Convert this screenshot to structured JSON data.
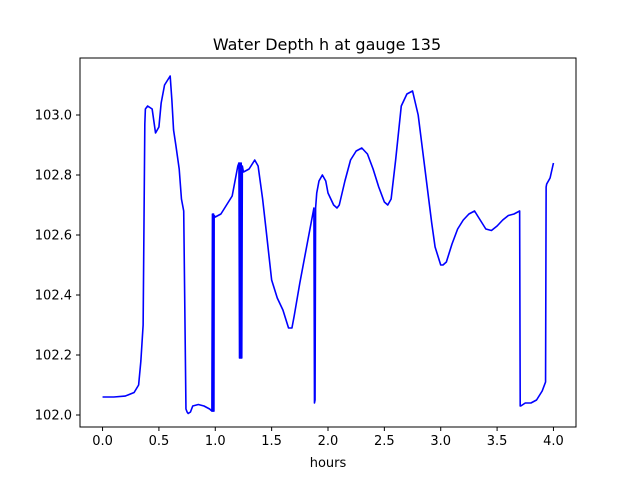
{
  "chart_data": {
    "type": "line",
    "title": "Water Depth h at gauge 135",
    "xlabel": "hours",
    "ylabel": "",
    "xlim": [
      -0.2,
      4.2
    ],
    "ylim": [
      101.96,
      103.19
    ],
    "xticks": [
      0.0,
      0.5,
      1.0,
      1.5,
      2.0,
      2.5,
      3.0,
      3.5,
      4.0
    ],
    "xtick_labels": [
      "0.0",
      "0.5",
      "1.0",
      "1.5",
      "2.0",
      "2.5",
      "3.0",
      "3.5",
      "4.0"
    ],
    "yticks": [
      102.0,
      102.2,
      102.4,
      102.6,
      102.8,
      103.0
    ],
    "ytick_labels": [
      "102.0",
      "102.2",
      "102.4",
      "102.6",
      "102.8",
      "103.0"
    ],
    "grid": false,
    "legend": "none",
    "series": [
      {
        "color": "#0000ff",
        "x": [
          0.0,
          0.1,
          0.2,
          0.28,
          0.32,
          0.34,
          0.36,
          0.375,
          0.38,
          0.4,
          0.44,
          0.47,
          0.5,
          0.52,
          0.55,
          0.6,
          0.615,
          0.63,
          0.65,
          0.68,
          0.7,
          0.72,
          0.74,
          0.745,
          0.75,
          0.76,
          0.78,
          0.8,
          0.85,
          0.9,
          0.95,
          0.97,
          0.975,
          0.978,
          0.982,
          0.985,
          0.988,
          0.99,
          1.0,
          1.05,
          1.1,
          1.15,
          1.2,
          1.21,
          1.215,
          1.22,
          1.225,
          1.23,
          1.235,
          1.24,
          1.245,
          1.25,
          1.3,
          1.35,
          1.38,
          1.42,
          1.45,
          1.5,
          1.55,
          1.6,
          1.65,
          1.68,
          1.7,
          1.75,
          1.8,
          1.85,
          1.875,
          1.88,
          1.885,
          1.89,
          1.9,
          1.92,
          1.95,
          1.98,
          2.0,
          2.05,
          2.08,
          2.1,
          2.15,
          2.2,
          2.25,
          2.3,
          2.35,
          2.4,
          2.45,
          2.5,
          2.53,
          2.56,
          2.6,
          2.65,
          2.7,
          2.75,
          2.8,
          2.85,
          2.9,
          2.92,
          2.95,
          3.0,
          3.02,
          3.05,
          3.1,
          3.15,
          3.2,
          3.25,
          3.3,
          3.35,
          3.4,
          3.45,
          3.5,
          3.55,
          3.6,
          3.65,
          3.7,
          3.705,
          3.71,
          3.75,
          3.8,
          3.85,
          3.9,
          3.93,
          3.935,
          3.94,
          3.97,
          4.0
        ],
        "y": [
          102.06,
          102.06,
          102.063,
          102.075,
          102.1,
          102.18,
          102.3,
          102.97,
          103.02,
          103.03,
          103.02,
          102.94,
          102.96,
          103.04,
          103.1,
          103.13,
          103.05,
          102.95,
          102.9,
          102.82,
          102.72,
          102.68,
          102.02,
          102.015,
          102.01,
          102.005,
          102.01,
          102.03,
          102.035,
          102.03,
          102.02,
          102.013,
          102.67,
          102.013,
          102.66,
          102.67,
          102.013,
          102.665,
          102.66,
          102.67,
          102.7,
          102.73,
          102.83,
          102.84,
          102.19,
          102.84,
          102.19,
          102.84,
          102.19,
          102.83,
          102.82,
          102.81,
          102.82,
          102.85,
          102.83,
          102.72,
          102.62,
          102.45,
          102.39,
          102.35,
          102.29,
          102.29,
          102.33,
          102.44,
          102.54,
          102.64,
          102.69,
          102.04,
          102.05,
          102.69,
          102.74,
          102.78,
          102.8,
          102.78,
          102.74,
          102.7,
          102.69,
          102.7,
          102.78,
          102.85,
          102.88,
          102.89,
          102.87,
          102.82,
          102.76,
          102.71,
          102.7,
          102.72,
          102.85,
          103.03,
          103.07,
          103.08,
          103.0,
          102.85,
          102.7,
          102.64,
          102.56,
          102.5,
          102.5,
          102.51,
          102.57,
          102.62,
          102.65,
          102.67,
          102.68,
          102.65,
          102.62,
          102.615,
          102.63,
          102.65,
          102.665,
          102.67,
          102.68,
          102.03,
          102.03,
          102.04,
          102.04,
          102.05,
          102.08,
          102.11,
          102.76,
          102.77,
          102.79,
          102.84
        ]
      }
    ]
  }
}
